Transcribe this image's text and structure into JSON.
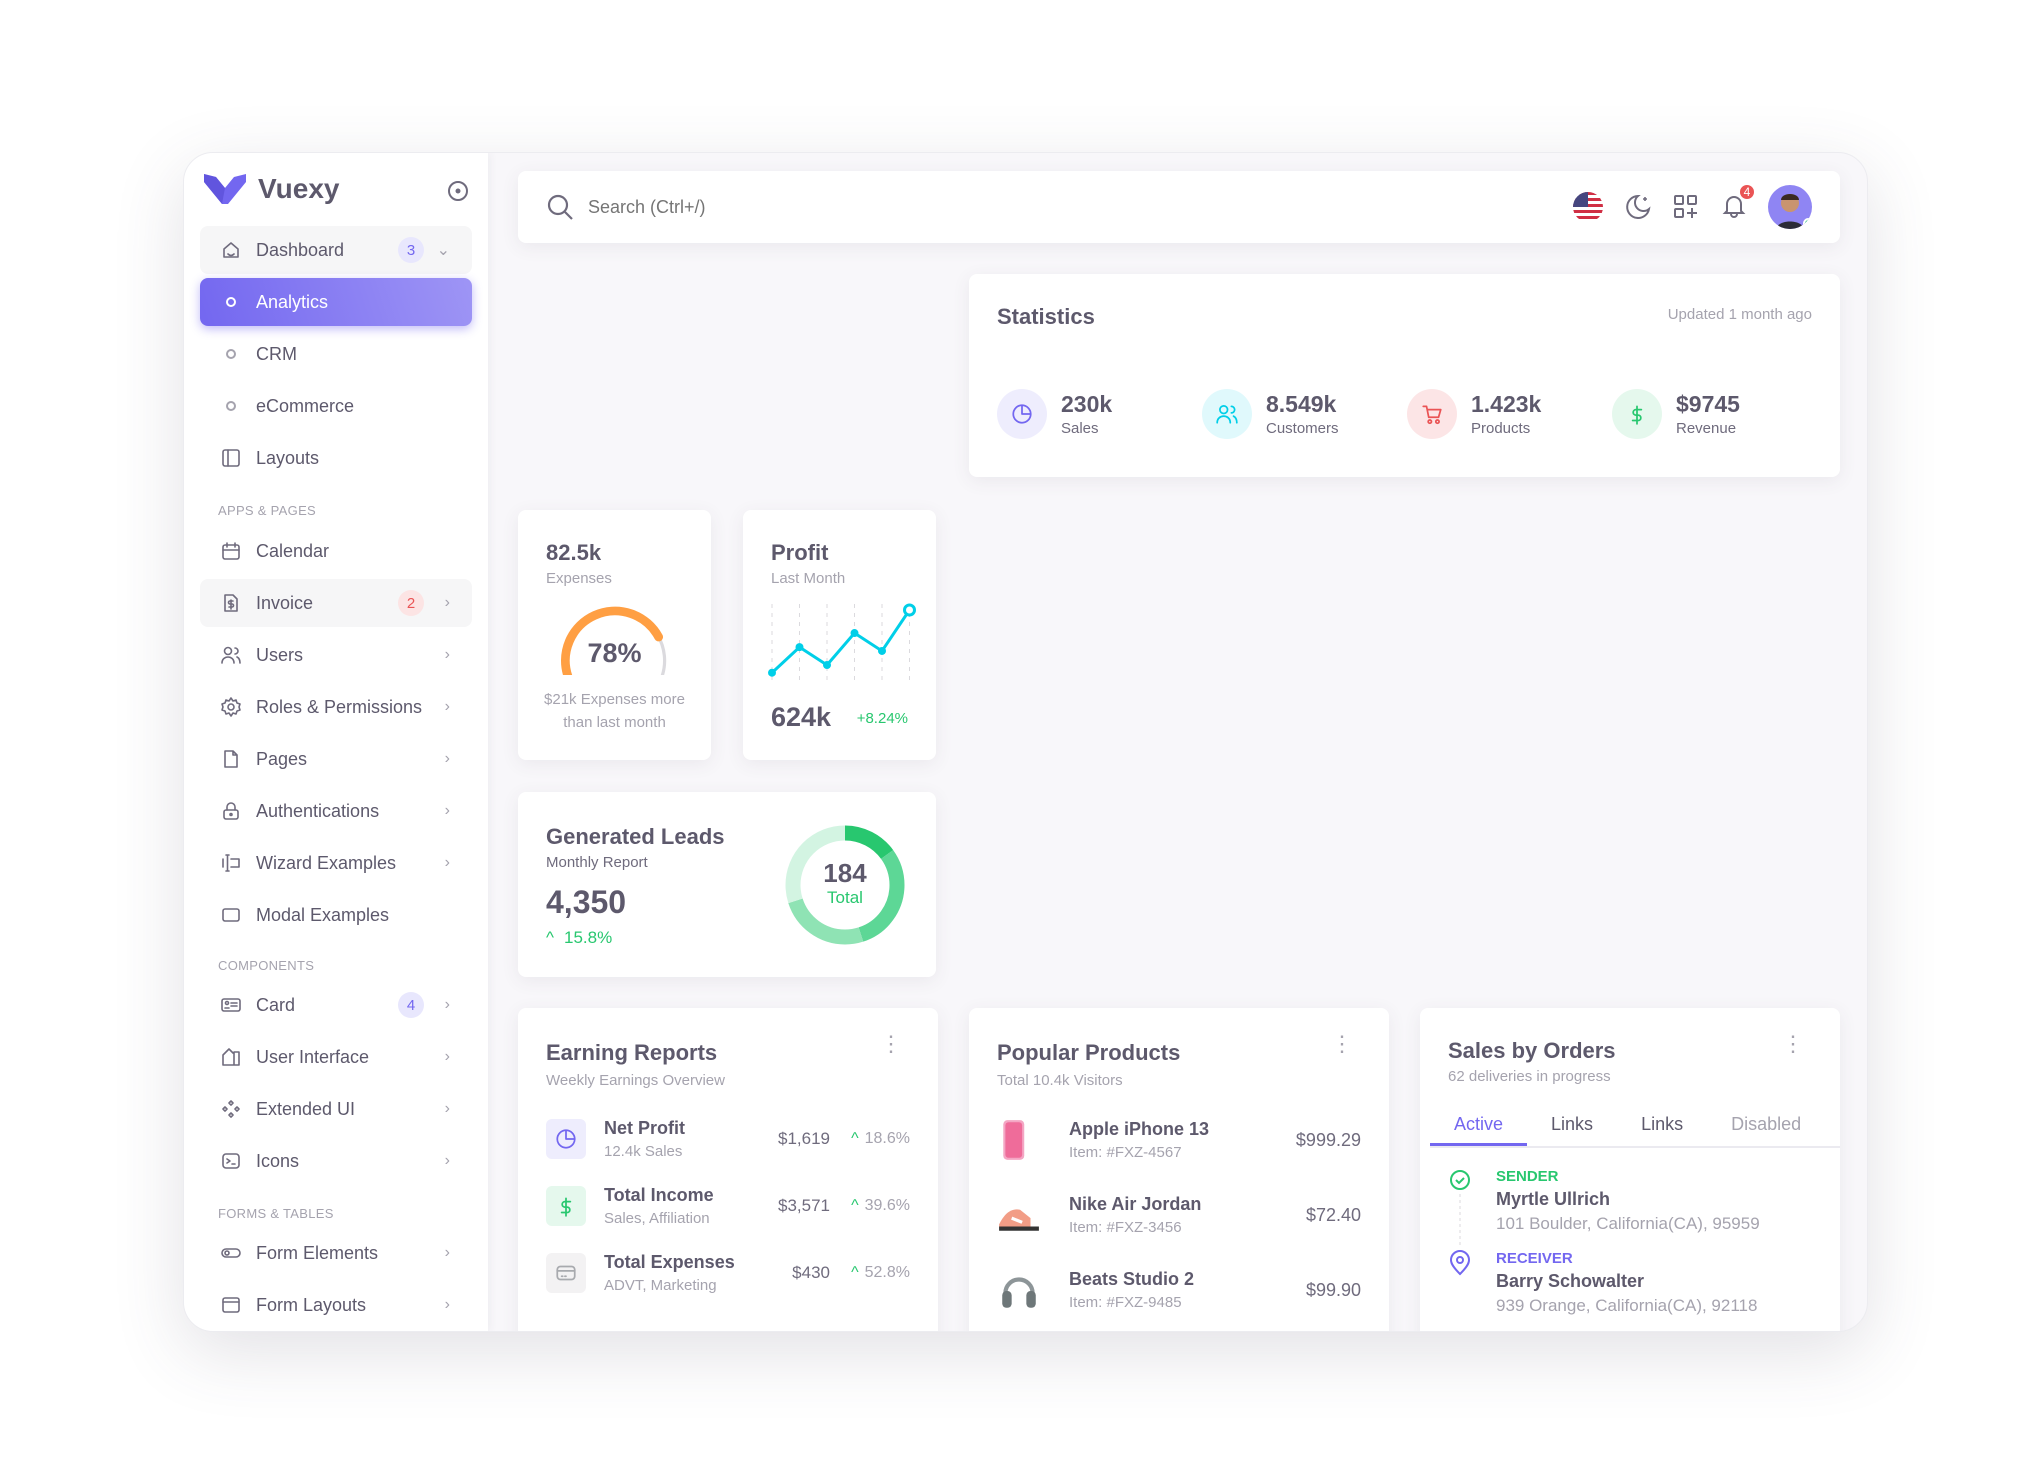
{
  "brand": {
    "name": "Vuexy",
    "accent": "#7367f0"
  },
  "sidebar": {
    "items": [
      {
        "label": "Dashboard",
        "icon": "home-icon",
        "badge": "3",
        "badge_color": "purple",
        "chevron": "down",
        "state": "open"
      },
      {
        "label": "Analytics",
        "icon": "circle-icon",
        "state": "active",
        "sub": true
      },
      {
        "label": "CRM",
        "icon": "circle-icon",
        "sub": true
      },
      {
        "label": "eCommerce",
        "icon": "circle-icon",
        "sub": true
      },
      {
        "label": "Layouts",
        "icon": "layout-sidebar-icon"
      },
      {
        "section": "APPS & PAGES"
      },
      {
        "label": "Calendar",
        "icon": "calendar-icon"
      },
      {
        "label": "Invoice",
        "icon": "file-dollar-icon",
        "badge": "2",
        "badge_color": "red",
        "chevron": "right",
        "state": "open"
      },
      {
        "label": "Users",
        "icon": "users-icon",
        "chevron": "right"
      },
      {
        "label": "Roles & Permissions",
        "icon": "settings-icon",
        "chevron": "right"
      },
      {
        "label": "Pages",
        "icon": "file-icon",
        "chevron": "right"
      },
      {
        "label": "Authentications",
        "icon": "lock-icon",
        "chevron": "right"
      },
      {
        "label": "Wizard Examples",
        "icon": "forms-icon",
        "chevron": "right"
      },
      {
        "label": "Modal Examples",
        "icon": "square-icon"
      },
      {
        "section": "COMPONENTS"
      },
      {
        "label": "Card",
        "icon": "id-card-icon",
        "badge": "4",
        "badge_color": "purple",
        "chevron": "right"
      },
      {
        "label": "User Interface",
        "icon": "color-swatch-icon",
        "chevron": "right"
      },
      {
        "label": "Extended UI",
        "icon": "components-icon",
        "chevron": "right"
      },
      {
        "label": "Icons",
        "icon": "terminal-icon",
        "chevron": "right"
      },
      {
        "section": "FORMS & TABLES"
      },
      {
        "label": "Form Elements",
        "icon": "toggle-icon",
        "chevron": "right"
      },
      {
        "label": "Form Layouts",
        "icon": "layout-navbar-icon",
        "chevron": "right"
      }
    ]
  },
  "navbar": {
    "search_placeholder": "Search (Ctrl+/)",
    "notifications": "4"
  },
  "statistics": {
    "title": "Statistics",
    "updated": "Updated 1 month ago",
    "items": [
      {
        "value": "230k",
        "label": "Sales",
        "icon": "chart-pie-icon",
        "color": "#7367f0"
      },
      {
        "value": "8.549k",
        "label": "Customers",
        "icon": "users-icon",
        "color": "#00cfe8"
      },
      {
        "value": "1.423k",
        "label": "Products",
        "icon": "shopping-cart-icon",
        "color": "#ea5455"
      },
      {
        "value": "$9745",
        "label": "Revenue",
        "icon": "currency-dollar-icon",
        "color": "#28c76f"
      }
    ]
  },
  "expenses": {
    "value": "82.5k",
    "label": "Expenses",
    "percent": 78,
    "percent_label": "78%",
    "note": "$21k Expenses more than last month",
    "color": "#ff9f43"
  },
  "profit": {
    "title": "Profit",
    "subtitle": "Last Month",
    "value": "624k",
    "change": "+8.24%",
    "chart": {
      "type": "line",
      "values": [
        1,
        21,
        7,
        32,
        18,
        50
      ],
      "color": "#00cfe8"
    }
  },
  "leads": {
    "title": "Generated Leads",
    "subtitle": "Monthly Report",
    "value": "4,350",
    "change": "15.8%",
    "donut_value": "184",
    "donut_label": "Total",
    "donut": {
      "type": "pie",
      "values": [
        15,
        30,
        25,
        30
      ],
      "colors": [
        "#28c76f",
        "#5dd796",
        "#8fe3b4",
        "#d3f4e2"
      ]
    }
  },
  "earning": {
    "title": "Earning Reports",
    "subtitle": "Weekly Earnings Overview",
    "rows": [
      {
        "name": "Net Profit",
        "sub": "12.4k Sales",
        "amount": "$1,619",
        "pct": "18.6%",
        "icon": "chart-pie-icon",
        "color": "#7367f0"
      },
      {
        "name": "Total Income",
        "sub": "Sales, Affiliation",
        "amount": "$3,571",
        "pct": "39.6%",
        "icon": "currency-dollar-icon",
        "color": "#28c76f"
      },
      {
        "name": "Total Expenses",
        "sub": "ADVT, Marketing",
        "amount": "$430",
        "pct": "52.8%",
        "icon": "credit-card-icon",
        "color": "#a8aaae"
      }
    ]
  },
  "popular": {
    "title": "Popular Products",
    "subtitle": "Total 10.4k Visitors",
    "rows": [
      {
        "name": "Apple iPhone 13",
        "sub": "Item: #FXZ-4567",
        "amount": "$999.29",
        "icon": "phone-icon"
      },
      {
        "name": "Nike Air Jordan",
        "sub": "Item: #FXZ-3456",
        "amount": "$72.40",
        "icon": "shoe-icon"
      },
      {
        "name": "Beats Studio 2",
        "sub": "Item: #FXZ-9485",
        "amount": "$99.90",
        "icon": "headphones-icon"
      }
    ]
  },
  "orders": {
    "title": "Sales by Orders",
    "subtitle": "62 deliveries in progress",
    "tabs": [
      "Active",
      "Links",
      "Links",
      "Disabled"
    ],
    "sender": {
      "label": "SENDER",
      "name": "Myrtle Ullrich",
      "address": "101 Boulder, California(CA), 95959"
    },
    "receiver": {
      "label": "RECEIVER",
      "name": "Barry Schowalter",
      "address": "939 Orange, California(CA), 92118"
    }
  }
}
